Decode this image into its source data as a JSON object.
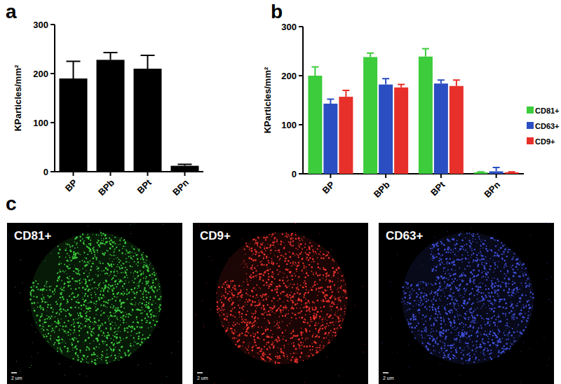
{
  "panel_labels": [
    "a",
    "b",
    "c"
  ],
  "chart_data": [
    {
      "type": "bar",
      "y_label": "KParticles/mm²",
      "categories": [
        "BP",
        "BPb",
        "BPt",
        "BPn"
      ],
      "values": [
        190,
        228,
        210,
        12
      ],
      "errors": [
        35,
        15,
        27,
        3
      ],
      "color": "#000000",
      "ylim": [
        0,
        300
      ],
      "yticks": [
        0,
        100,
        200,
        300
      ]
    },
    {
      "type": "bar",
      "y_label": "KParticles/mm²",
      "categories": [
        "BP",
        "BPb",
        "BPt",
        "BPn"
      ],
      "series": [
        {
          "name": "CD81+",
          "color": "#3ccc3c",
          "values": [
            200,
            238,
            239,
            3
          ],
          "errors": [
            18,
            8,
            16,
            1
          ]
        },
        {
          "name": "CD63+",
          "color": "#2b4fc2",
          "values": [
            143,
            182,
            184,
            5
          ],
          "errors": [
            9,
            12,
            7,
            8
          ]
        },
        {
          "name": "CD9+",
          "color": "#e8302a",
          "values": [
            157,
            176,
            179,
            3
          ],
          "errors": [
            13,
            6,
            12,
            1
          ]
        }
      ],
      "legend": "right",
      "ylim": [
        0,
        300
      ],
      "yticks": [
        0,
        100,
        200,
        300
      ]
    }
  ],
  "images": [
    {
      "label": "CD81+",
      "color": "#3ccc3c",
      "scale_bar": "2 um"
    },
    {
      "label": "CD9+",
      "color": "#e8302a",
      "scale_bar": "2 um"
    },
    {
      "label": "CD63+",
      "color": "#3f4fd8",
      "scale_bar": "2 um"
    }
  ]
}
